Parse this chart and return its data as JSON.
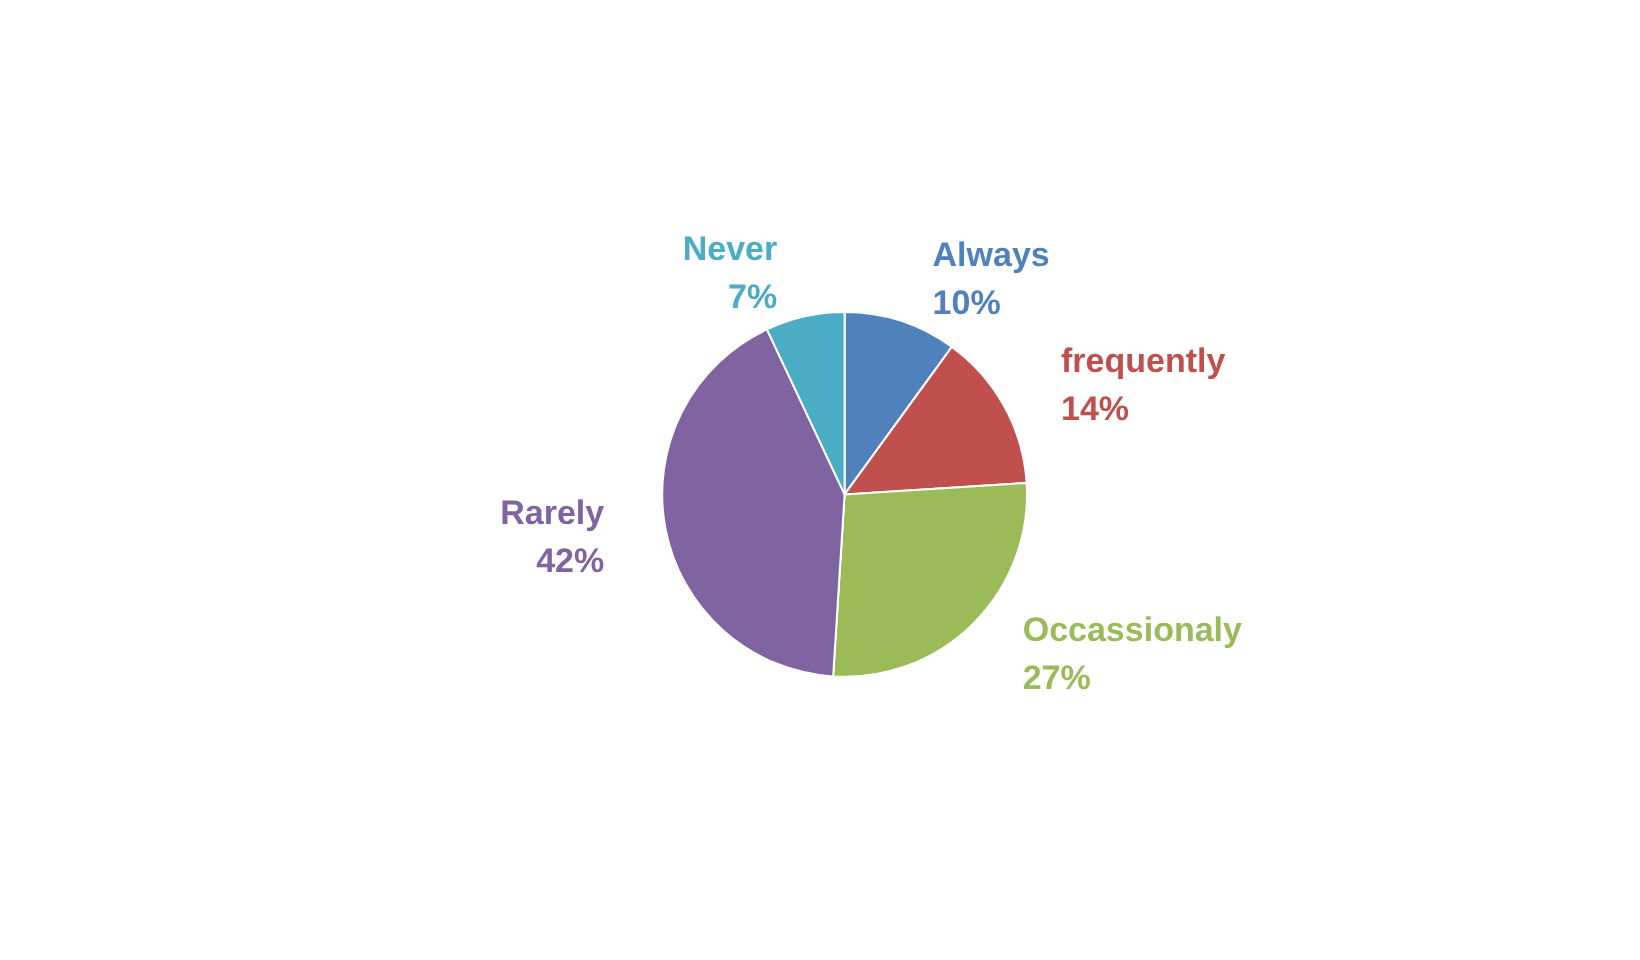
{
  "chart_data": {
    "type": "pie",
    "categories": [
      "Always",
      "frequently",
      "Occassionaly",
      "Rarely",
      "Never"
    ],
    "values": [
      10,
      14,
      27,
      42,
      7
    ],
    "value_labels": [
      "10%",
      "14%",
      "27%",
      "42%",
      "7%"
    ],
    "colors": [
      "#4f81bd",
      "#c0504d",
      "#9bbb59",
      "#8064a2",
      "#4bacc6"
    ]
  }
}
